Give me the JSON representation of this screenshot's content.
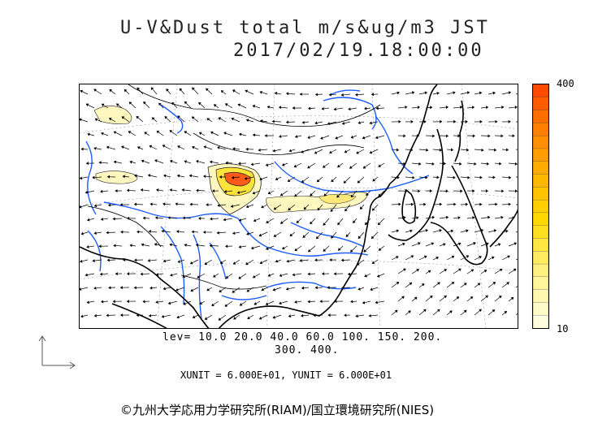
{
  "title": {
    "line1": "U-V&Dust total m/s&ug/m3 JST",
    "line2": "2017/02/19.18:00:00"
  },
  "colorbar": {
    "max_label": "400",
    "min_label": "10",
    "colors": [
      "#fffde0",
      "#fffbc8",
      "#fff8b0",
      "#fff59a",
      "#fff080",
      "#ffeb60",
      "#ffe640",
      "#ffe020",
      "#ffd800",
      "#ffcf00",
      "#ffc400",
      "#ffb800",
      "#ffab00",
      "#ff9d00",
      "#ff8f00",
      "#ff7f00",
      "#ff6e00",
      "#ff5c00",
      "#ff4a00"
    ]
  },
  "levels": {
    "line1": "lev= 10.0 20.0 40.0 60.0 100. 150. 200.",
    "line2": "300. 400."
  },
  "units": {
    "text": "XUNIT = 6.000E+01, YUNIT = 6.000E+01"
  },
  "credit": {
    "text": "©九州大学応用力学研究所(RIAM)/国立環境研究所(NIES)"
  },
  "colors": {
    "rivers": "#1e5eff",
    "coast": "#000000",
    "dust_low": "#fff7c0",
    "dust_mid": "#ffe23a",
    "dust_high": "#ff5a1a"
  }
}
